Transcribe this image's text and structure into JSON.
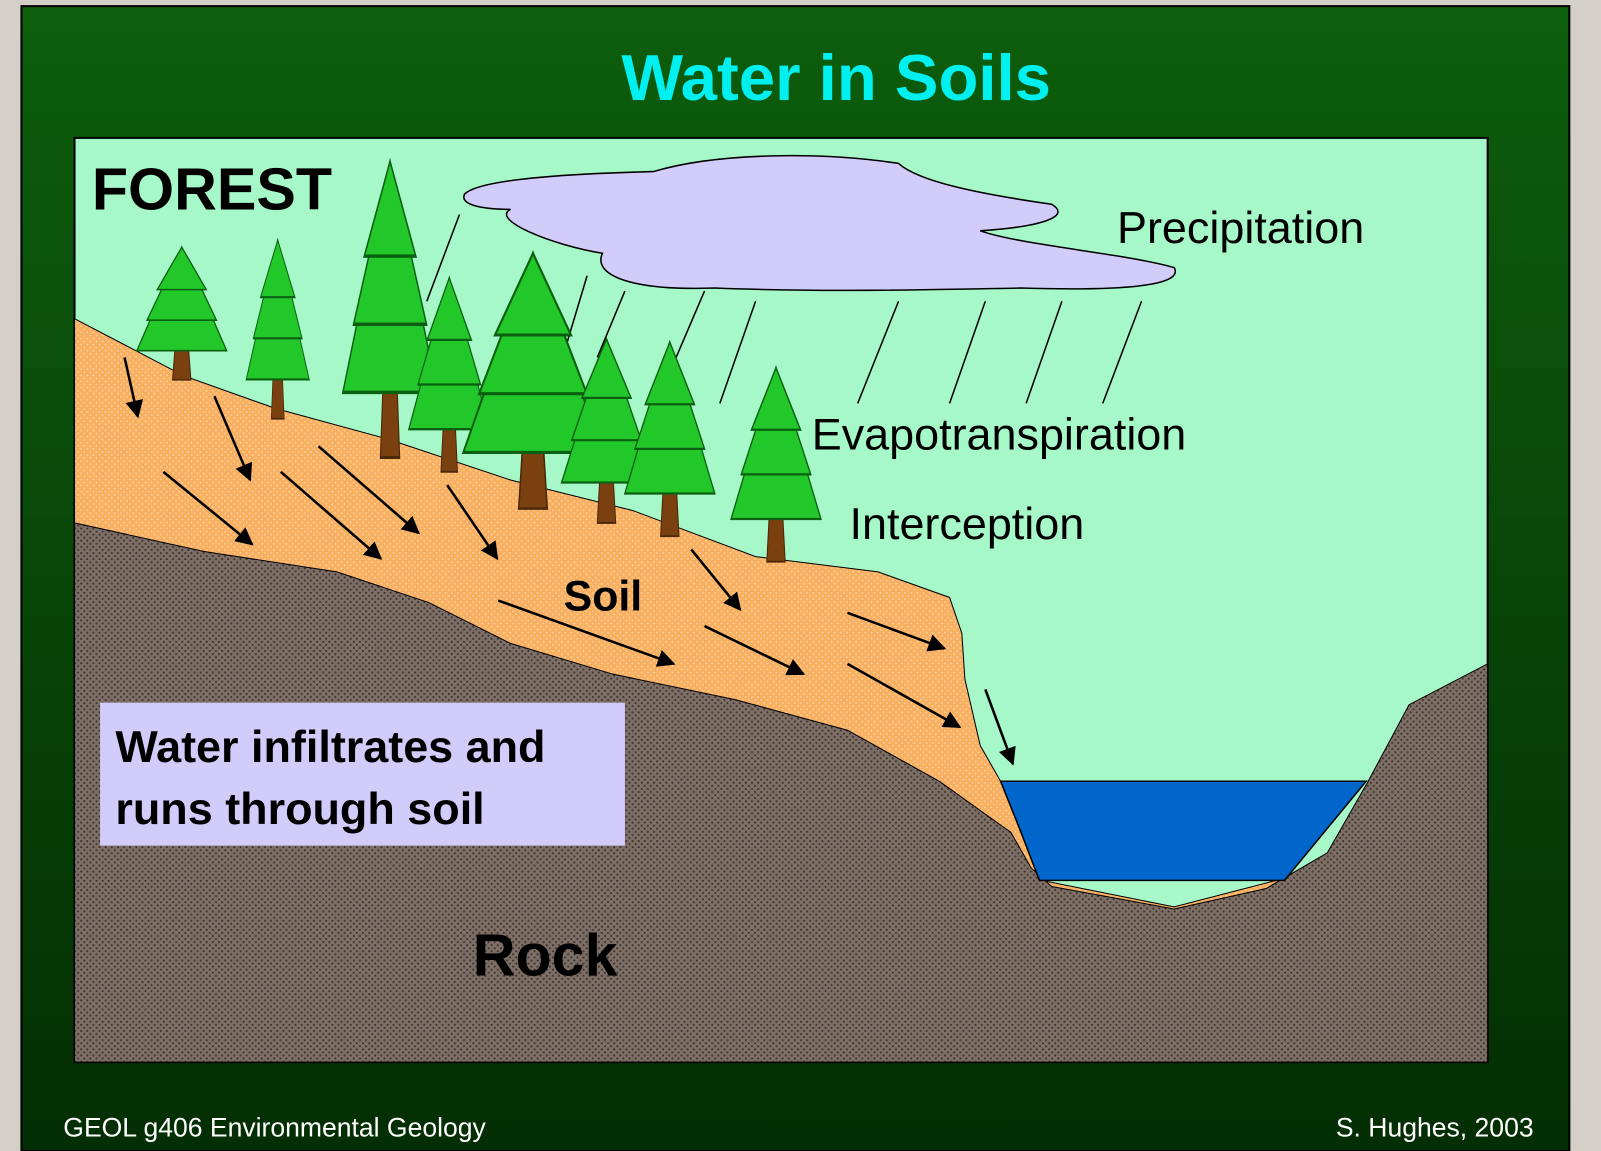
{
  "title": "Water in Soils",
  "labels": {
    "forest": "FOREST",
    "precipitation": "Precipitation",
    "evapotranspiration": "Evapotranspiration",
    "interception": "Interception",
    "soil": "Soil",
    "rock": "Rock"
  },
  "callout": {
    "lines": [
      "Water infiltrates and",
      "runs through soil"
    ]
  },
  "footer": {
    "left": "GEOL g406 Environmental Geology",
    "right": "S. Hughes, 2003"
  }
}
